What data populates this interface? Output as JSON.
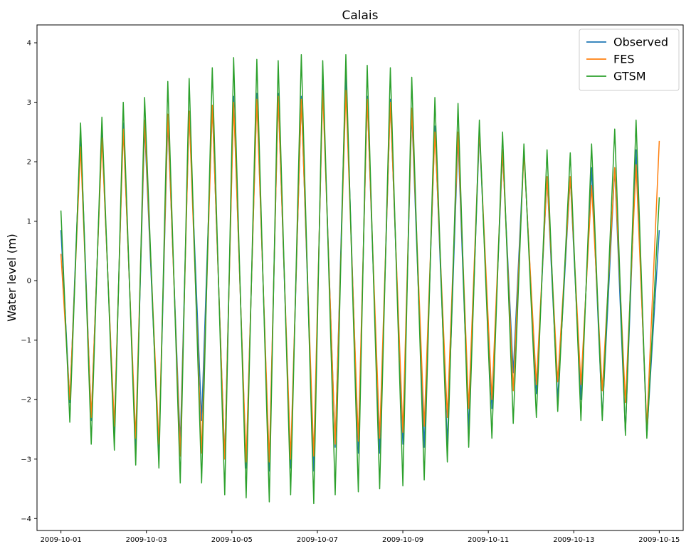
{
  "chart_data": {
    "type": "line",
    "title": "Calais",
    "xlabel": "",
    "ylabel": "Water level (m)",
    "x_start": "2009-10-01T00:00",
    "x_end": "2009-10-15T00:00",
    "x_ticks": [
      "2009-10-01",
      "2009-10-03",
      "2009-10-05",
      "2009-10-07",
      "2009-10-09",
      "2009-10-11",
      "2009-10-13",
      "2009-10-15"
    ],
    "ylim": [
      -4.2,
      4.3
    ],
    "y_ticks": [
      -4,
      -3,
      -2,
      -1,
      0,
      1,
      2,
      3,
      4
    ],
    "grid": false,
    "legend_position": "top-right",
    "series": [
      {
        "name": "Observed",
        "color": "#1f77b4",
        "x": [
          "2009-10-01T00:00",
          "2009-10-01T05:00",
          "2009-10-01T11:00",
          "2009-10-01T17:00",
          "2009-10-01T23:00",
          "2009-10-02T06:00",
          "2009-10-02T11:00",
          "2009-10-02T18:00",
          "2009-10-02T23:00",
          "2009-10-03T07:00",
          "2009-10-03T12:00",
          "2009-10-03T19:00",
          "2009-10-04T00:00",
          "2009-10-04T07:00",
          "2009-10-04T13:00",
          "2009-10-04T20:00",
          "2009-10-05T01:00",
          "2009-10-05T08:00",
          "2009-10-05T14:00",
          "2009-10-05T21:00",
          "2009-10-06T02:00",
          "2009-10-06T09:00",
          "2009-10-06T15:00",
          "2009-10-06T22:00",
          "2009-10-07T03:00",
          "2009-10-07T10:00",
          "2009-10-07T16:00",
          "2009-10-07T23:00",
          "2009-10-08T04:00",
          "2009-10-08T11:00",
          "2009-10-08T17:00",
          "2009-10-09T00:00",
          "2009-10-09T05:00",
          "2009-10-09T12:00",
          "2009-10-09T18:00",
          "2009-10-10T01:00",
          "2009-10-10T07:00",
          "2009-10-10T13:00",
          "2009-10-10T19:00",
          "2009-10-11T02:00",
          "2009-10-11T08:00",
          "2009-10-11T14:00",
          "2009-10-11T20:00",
          "2009-10-12T03:00",
          "2009-10-12T09:00",
          "2009-10-12T15:00",
          "2009-10-12T22:00",
          "2009-10-13T04:00",
          "2009-10-13T10:00",
          "2009-10-13T16:00",
          "2009-10-13T23:00",
          "2009-10-14T05:00",
          "2009-10-14T11:00",
          "2009-10-14T17:00",
          "2009-10-15T00:00"
        ],
        "y": [
          0.85,
          -2.05,
          2.5,
          -2.35,
          2.48,
          -2.55,
          2.65,
          -2.8,
          2.6,
          -2.9,
          2.7,
          -2.75,
          2.85,
          -2.35,
          2.95,
          -3.0,
          3.1,
          -3.15,
          3.15,
          -3.2,
          3.15,
          -3.15,
          3.1,
          -3.2,
          3.3,
          -2.8,
          3.5,
          -2.9,
          3.1,
          -2.9,
          3.05,
          -2.75,
          2.85,
          -2.8,
          2.6,
          -2.75,
          2.4,
          -2.5,
          2.5,
          -2.15,
          2.15,
          -1.55,
          2.2,
          -1.9,
          1.75,
          -2.0,
          1.75,
          -2.0,
          1.9,
          -2.3,
          1.9,
          -2.55,
          2.2,
          -2.6,
          0.85
        ]
      },
      {
        "name": "FES",
        "color": "#ff7f0e",
        "x": [
          "2009-10-01T00:00",
          "2009-10-01T05:00",
          "2009-10-01T11:00",
          "2009-10-01T17:00",
          "2009-10-01T23:00",
          "2009-10-02T06:00",
          "2009-10-02T11:00",
          "2009-10-02T18:00",
          "2009-10-02T23:00",
          "2009-10-03T07:00",
          "2009-10-03T12:00",
          "2009-10-03T19:00",
          "2009-10-04T00:00",
          "2009-10-04T07:00",
          "2009-10-04T13:00",
          "2009-10-04T20:00",
          "2009-10-05T01:00",
          "2009-10-05T08:00",
          "2009-10-05T14:00",
          "2009-10-05T21:00",
          "2009-10-06T02:00",
          "2009-10-06T09:00",
          "2009-10-06T15:00",
          "2009-10-06T22:00",
          "2009-10-07T03:00",
          "2009-10-07T10:00",
          "2009-10-07T16:00",
          "2009-10-07T23:00",
          "2009-10-08T04:00",
          "2009-10-08T11:00",
          "2009-10-08T17:00",
          "2009-10-09T00:00",
          "2009-10-09T05:00",
          "2009-10-09T12:00",
          "2009-10-09T18:00",
          "2009-10-10T01:00",
          "2009-10-10T07:00",
          "2009-10-10T13:00",
          "2009-10-10T19:00",
          "2009-10-11T02:00",
          "2009-10-11T08:00",
          "2009-10-11T14:00",
          "2009-10-11T20:00",
          "2009-10-12T03:00",
          "2009-10-12T09:00",
          "2009-10-12T15:00",
          "2009-10-12T22:00",
          "2009-10-13T04:00",
          "2009-10-13T10:00",
          "2009-10-13T16:00",
          "2009-10-13T23:00",
          "2009-10-14T05:00",
          "2009-10-14T11:00",
          "2009-10-14T17:00",
          "2009-10-15T00:00"
        ],
        "y": [
          0.45,
          -2.0,
          2.25,
          -2.3,
          2.4,
          -2.45,
          2.55,
          -2.65,
          2.7,
          -2.75,
          2.8,
          -2.95,
          2.85,
          -2.9,
          2.95,
          -3.0,
          3.0,
          -3.05,
          3.05,
          -3.05,
          3.1,
          -3.0,
          3.05,
          -2.95,
          3.2,
          -2.75,
          3.2,
          -2.7,
          3.05,
          -2.65,
          3.0,
          -2.55,
          2.9,
          -2.45,
          2.5,
          -2.3,
          2.5,
          -2.15,
          2.55,
          -2.0,
          2.2,
          -1.85,
          2.15,
          -1.75,
          1.75,
          -1.7,
          1.75,
          -1.75,
          1.6,
          -1.85,
          1.9,
          -2.05,
          1.95,
          -2.45,
          2.35
        ]
      },
      {
        "name": "GTSM",
        "color": "#2ca02c",
        "x": [
          "2009-10-01T00:00",
          "2009-10-01T05:00",
          "2009-10-01T11:00",
          "2009-10-01T17:00",
          "2009-10-01T23:00",
          "2009-10-02T06:00",
          "2009-10-02T11:00",
          "2009-10-02T18:00",
          "2009-10-02T23:00",
          "2009-10-03T07:00",
          "2009-10-03T12:00",
          "2009-10-03T19:00",
          "2009-10-04T00:00",
          "2009-10-04T07:00",
          "2009-10-04T13:00",
          "2009-10-04T20:00",
          "2009-10-05T01:00",
          "2009-10-05T08:00",
          "2009-10-05T14:00",
          "2009-10-05T21:00",
          "2009-10-06T02:00",
          "2009-10-06T09:00",
          "2009-10-06T15:00",
          "2009-10-06T22:00",
          "2009-10-07T03:00",
          "2009-10-07T10:00",
          "2009-10-07T16:00",
          "2009-10-07T23:00",
          "2009-10-08T04:00",
          "2009-10-08T11:00",
          "2009-10-08T17:00",
          "2009-10-09T00:00",
          "2009-10-09T05:00",
          "2009-10-09T12:00",
          "2009-10-09T18:00",
          "2009-10-10T01:00",
          "2009-10-10T07:00",
          "2009-10-10T13:00",
          "2009-10-10T19:00",
          "2009-10-11T02:00",
          "2009-10-11T08:00",
          "2009-10-11T14:00",
          "2009-10-11T20:00",
          "2009-10-12T03:00",
          "2009-10-12T09:00",
          "2009-10-12T15:00",
          "2009-10-12T22:00",
          "2009-10-13T04:00",
          "2009-10-13T10:00",
          "2009-10-13T16:00",
          "2009-10-13T23:00",
          "2009-10-14T05:00",
          "2009-10-14T11:00",
          "2009-10-14T17:00",
          "2009-10-15T00:00"
        ],
        "y": [
          1.18,
          -2.38,
          2.65,
          -2.75,
          2.75,
          -2.85,
          3.0,
          -3.1,
          3.08,
          -3.15,
          3.35,
          -3.4,
          3.4,
          -3.4,
          3.58,
          -3.6,
          3.75,
          -3.65,
          3.72,
          -3.72,
          3.7,
          -3.6,
          3.8,
          -3.75,
          3.7,
          -3.6,
          3.8,
          -3.55,
          3.62,
          -3.5,
          3.58,
          -3.45,
          3.42,
          -3.35,
          3.08,
          -3.05,
          2.98,
          -2.8,
          2.7,
          -2.65,
          2.5,
          -2.4,
          2.3,
          -2.3,
          2.2,
          -2.2,
          2.15,
          -2.35,
          2.3,
          -2.35,
          2.55,
          -2.6,
          2.7,
          -2.65,
          1.4
        ]
      }
    ]
  }
}
